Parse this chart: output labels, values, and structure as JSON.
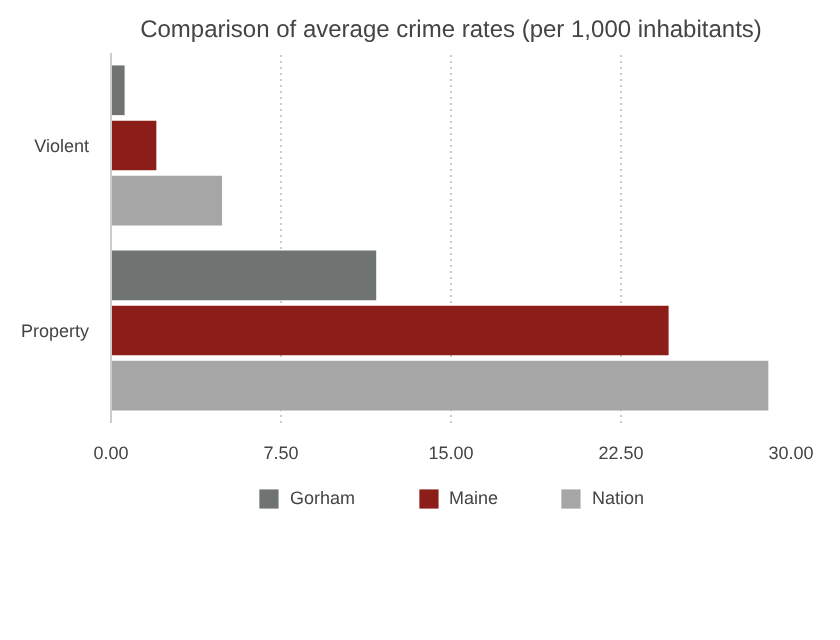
{
  "chart_data": {
    "type": "bar",
    "orientation": "horizontal",
    "title": "Comparison of average crime rates (per 1,000 inhabitants)",
    "categories": [
      "Violent",
      "Property"
    ],
    "series": [
      {
        "name": "Gorham",
        "color": "#6f7472",
        "values": [
          0.6,
          11.7
        ]
      },
      {
        "name": "Maine",
        "color": "#8b1e19",
        "values": [
          2.0,
          24.6
        ]
      },
      {
        "name": "Nation",
        "color": "#a6a6a6",
        "values": [
          4.9,
          29.0
        ]
      }
    ],
    "xlim": [
      0,
      30
    ],
    "xticks": [
      {
        "value": 0,
        "label": "0.00"
      },
      {
        "value": 7.5,
        "label": "7.50"
      },
      {
        "value": 15,
        "label": "15.00"
      },
      {
        "value": 22.5,
        "label": "22.50"
      },
      {
        "value": 30,
        "label": "30.00"
      }
    ],
    "grid": "x",
    "legend": "bottom"
  }
}
